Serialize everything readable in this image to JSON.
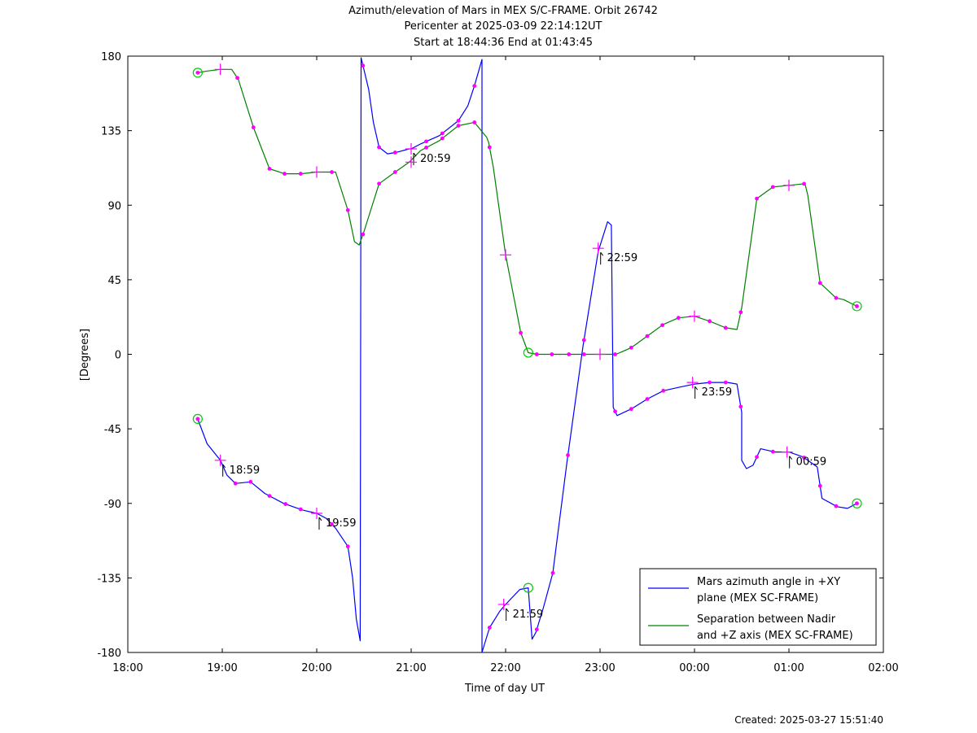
{
  "chart_data": {
    "type": "line",
    "title": [
      "Azimuth/elevation of Mars in MEX S/C-FRAME.  Orbit 26742",
      "Pericenter at 2025-03-09 22:14:12UT",
      "Start at 18:44:36 End at 01:43:45"
    ],
    "xlabel": "Time of day UT",
    "ylabel": "[Degrees]",
    "created": "Created: 2025-03-27 15:51:40",
    "xlim": [
      18.0,
      26.0
    ],
    "ylim": [
      -180,
      180
    ],
    "x_ticks": [
      {
        "value": 18,
        "label": "18:00"
      },
      {
        "value": 19,
        "label": "19:00"
      },
      {
        "value": 20,
        "label": "20:00"
      },
      {
        "value": 21,
        "label": "21:00"
      },
      {
        "value": 22,
        "label": "22:00"
      },
      {
        "value": 23,
        "label": "23:00"
      },
      {
        "value": 24,
        "label": "00:00"
      },
      {
        "value": 25,
        "label": "01:00"
      },
      {
        "value": 26,
        "label": "02:00"
      }
    ],
    "y_ticks": [
      180,
      135,
      90,
      45,
      0,
      -45,
      -90,
      -135,
      -180
    ],
    "legend_position": "bottom-right",
    "series": [
      {
        "name": "Mars azimuth angle in +XY plane (MEX SC-FRAME)",
        "legend_lines": [
          "Mars azimuth angle in +XY",
          "plane (MEX SC-FRAME)"
        ],
        "color": "#0000ff",
        "points": [
          [
            18.74,
            -39
          ],
          [
            18.84,
            -54
          ],
          [
            18.98,
            -64
          ],
          [
            19.05,
            -73
          ],
          [
            19.14,
            -78
          ],
          [
            19.3,
            -77
          ],
          [
            19.45,
            -84
          ],
          [
            19.65,
            -90
          ],
          [
            19.85,
            -94
          ],
          [
            20.0,
            -96
          ],
          [
            20.1,
            -99
          ],
          [
            20.2,
            -105
          ],
          [
            20.33,
            -116
          ],
          [
            20.38,
            -135
          ],
          [
            20.42,
            -160
          ],
          [
            20.46,
            -173
          ],
          [
            20.47,
            179
          ],
          [
            20.55,
            160
          ],
          [
            20.6,
            140
          ],
          [
            20.66,
            125
          ],
          [
            20.75,
            121
          ],
          [
            20.85,
            122
          ],
          [
            20.98,
            124
          ],
          [
            21.0,
            124
          ],
          [
            21.1,
            127
          ],
          [
            21.3,
            132
          ],
          [
            21.5,
            141
          ],
          [
            21.6,
            150
          ],
          [
            21.67,
            162
          ],
          [
            21.75,
            178
          ],
          [
            21.75,
            -180
          ],
          [
            21.83,
            -165
          ],
          [
            21.94,
            -155
          ],
          [
            22.0,
            -151
          ],
          [
            22.15,
            -142
          ],
          [
            22.24,
            -141
          ],
          [
            22.28,
            -172
          ],
          [
            22.32,
            -168
          ],
          [
            22.4,
            -153
          ],
          [
            22.5,
            -132
          ],
          [
            22.65,
            -65
          ],
          [
            22.82,
            5
          ],
          [
            22.98,
            62
          ],
          [
            23.08,
            80
          ],
          [
            23.12,
            78
          ],
          [
            23.14,
            -32
          ],
          [
            23.18,
            -37
          ],
          [
            23.33,
            -33
          ],
          [
            23.5,
            -27
          ],
          [
            23.67,
            -22
          ],
          [
            23.83,
            -20
          ],
          [
            24.0,
            -18
          ],
          [
            24.16,
            -17
          ],
          [
            24.35,
            -17
          ],
          [
            24.45,
            -18
          ],
          [
            24.5,
            -35
          ],
          [
            24.5,
            -64
          ],
          [
            24.55,
            -69
          ],
          [
            24.62,
            -67
          ],
          [
            24.7,
            -57
          ],
          [
            24.85,
            -59
          ],
          [
            25.0,
            -59
          ],
          [
            25.15,
            -62
          ],
          [
            25.3,
            -68
          ],
          [
            25.35,
            -87
          ],
          [
            25.51,
            -92
          ],
          [
            25.62,
            -93
          ],
          [
            25.72,
            -90
          ]
        ]
      },
      {
        "name": "Separation between Nadir and +Z axis (MEX SC-FRAME)",
        "legend_lines": [
          "Separation between Nadir",
          "and +Z axis (MEX SC-FRAME)"
        ],
        "color": "#008000",
        "points": [
          [
            18.74,
            170
          ],
          [
            18.84,
            171
          ],
          [
            18.98,
            172
          ],
          [
            19.1,
            172
          ],
          [
            19.17,
            166
          ],
          [
            19.33,
            137
          ],
          [
            19.5,
            112
          ],
          [
            19.66,
            109
          ],
          [
            19.83,
            109
          ],
          [
            20.0,
            110
          ],
          [
            20.2,
            110
          ],
          [
            20.33,
            87
          ],
          [
            20.4,
            68
          ],
          [
            20.45,
            66
          ],
          [
            20.5,
            74
          ],
          [
            20.66,
            103
          ],
          [
            20.83,
            110
          ],
          [
            20.98,
            116
          ],
          [
            21.1,
            123
          ],
          [
            21.3,
            129
          ],
          [
            21.5,
            138
          ],
          [
            21.67,
            140
          ],
          [
            21.8,
            131
          ],
          [
            21.82,
            128
          ],
          [
            21.87,
            113
          ],
          [
            22.0,
            60
          ],
          [
            22.16,
            13
          ],
          [
            22.24,
            1
          ],
          [
            22.33,
            0
          ],
          [
            22.5,
            0
          ],
          [
            22.66,
            0
          ],
          [
            23.0,
            0
          ],
          [
            23.17,
            0
          ],
          [
            23.33,
            4
          ],
          [
            23.5,
            11
          ],
          [
            23.67,
            18
          ],
          [
            23.83,
            22
          ],
          [
            24.0,
            23
          ],
          [
            24.16,
            20
          ],
          [
            24.33,
            16
          ],
          [
            24.45,
            15
          ],
          [
            24.5,
            28
          ],
          [
            24.66,
            94
          ],
          [
            24.83,
            101
          ],
          [
            25.0,
            102
          ],
          [
            25.17,
            103
          ],
          [
            25.2,
            96
          ],
          [
            25.33,
            43
          ],
          [
            25.5,
            34
          ],
          [
            25.58,
            33
          ],
          [
            25.72,
            29
          ]
        ]
      }
    ],
    "markers": {
      "color": "#ff00ff",
      "azimuth_dots_x": [
        18.74,
        19.14,
        19.3,
        19.5,
        19.67,
        19.83,
        20.16,
        20.33,
        20.49,
        20.66,
        20.83,
        21.16,
        21.33,
        21.5,
        21.67,
        21.83,
        22.33,
        22.5,
        22.66,
        22.83,
        23.16,
        23.33,
        23.5,
        23.67,
        24.16,
        24.33,
        24.49,
        24.66,
        24.83,
        25.16,
        25.33,
        25.5,
        25.72
      ],
      "separation_dots_x": [
        18.74,
        19.16,
        19.33,
        19.5,
        19.66,
        19.83,
        20.16,
        20.33,
        20.49,
        20.66,
        20.83,
        21.16,
        21.33,
        21.5,
        21.67,
        21.83,
        22.16,
        22.33,
        22.49,
        22.67,
        22.83,
        23.16,
        23.33,
        23.5,
        23.66,
        23.83,
        24.16,
        24.33,
        24.49,
        24.66,
        24.83,
        25.16,
        25.33,
        25.5,
        25.72
      ],
      "hour_crosses": [
        {
          "x": 18.98,
          "y": -64,
          "label": "18:59"
        },
        {
          "x": 20.0,
          "y": -96,
          "label": "19:59"
        },
        {
          "x": 21.0,
          "y": 124,
          "label": "20:59"
        },
        {
          "x": 21.98,
          "y": -151,
          "label": "21:59"
        },
        {
          "x": 22.98,
          "y": 64,
          "label": "22:59"
        },
        {
          "x": 23.98,
          "y": -17,
          "label": "23:59"
        },
        {
          "x": 24.98,
          "y": -59,
          "label": "00:59"
        }
      ],
      "hour_crosses_separation": [
        [
          18.98,
          172
        ],
        [
          20.0,
          110
        ],
        [
          21.0,
          116
        ],
        [
          22.0,
          60
        ],
        [
          23.0,
          0
        ],
        [
          24.0,
          23
        ],
        [
          25.0,
          102
        ]
      ],
      "circles": [
        [
          18.74,
          170
        ],
        [
          18.74,
          -39
        ],
        [
          22.24,
          1
        ],
        [
          22.24,
          -141
        ],
        [
          25.72,
          29
        ],
        [
          25.72,
          -90
        ]
      ]
    }
  }
}
